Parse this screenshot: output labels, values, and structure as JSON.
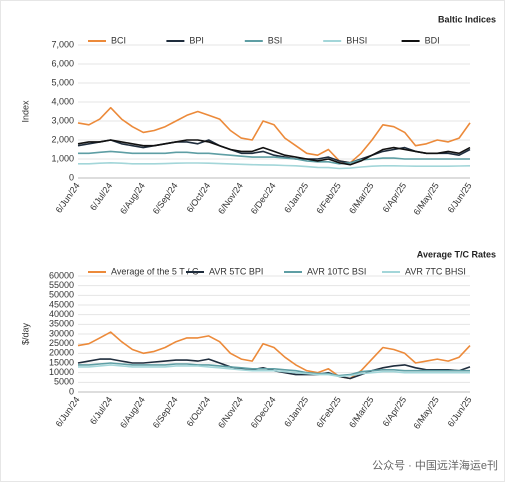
{
  "chart_data": [
    {
      "type": "line",
      "title": "Baltic Indices",
      "y_label": "Index",
      "categories": [
        "6/Jun/24",
        null,
        null,
        "6/Jul/24",
        null,
        null,
        "6/Aug/24",
        null,
        null,
        "6/Sep/24",
        null,
        null,
        "6/Oct/24",
        null,
        null,
        "6/Nov/24",
        null,
        null,
        "6/Dec/24",
        null,
        null,
        "6/Jan/25",
        null,
        null,
        "6/Feb/25",
        null,
        null,
        "6/Mar/25",
        null,
        null,
        "6/Apr/25",
        null,
        null,
        "6/May/25",
        null,
        null,
        "6/Jun/25"
      ],
      "ylim": [
        0,
        7000
      ],
      "yticks": [
        0,
        {
          "value": 1000,
          "label": "1,000"
        },
        {
          "value": 2000,
          "label": "2,000"
        },
        {
          "value": 3000,
          "label": "3,000"
        },
        {
          "value": 4000,
          "label": "4,000"
        },
        {
          "value": 5000,
          "label": "5,000"
        },
        {
          "value": 6000,
          "label": "6,000"
        },
        {
          "value": 7000,
          "label": "7,000"
        }
      ],
      "grid": true,
      "series": [
        {
          "name": "BCI",
          "color": "#ec8a3a",
          "values": [
            2900,
            2800,
            3100,
            3700,
            3100,
            2700,
            2400,
            2500,
            2700,
            3000,
            3300,
            3500,
            3300,
            3100,
            2500,
            2100,
            2000,
            3000,
            2800,
            2100,
            1700,
            1300,
            1200,
            1500,
            900,
            800,
            1300,
            2000,
            2800,
            2700,
            2400,
            1700,
            1800,
            2000,
            1900,
            2100,
            2900
          ]
        },
        {
          "name": "BPI",
          "color": "#1f2d3d",
          "values": [
            1700,
            1800,
            1900,
            2000,
            1800,
            1700,
            1600,
            1700,
            1800,
            1900,
            1900,
            1800,
            2000,
            1700,
            1500,
            1300,
            1300,
            1400,
            1200,
            1100,
            1000,
            1000,
            1000,
            1100,
            900,
            800,
            1000,
            1200,
            1400,
            1500,
            1600,
            1400,
            1300,
            1300,
            1300,
            1200,
            1500
          ]
        },
        {
          "name": "BSI",
          "color": "#5e9ea4",
          "values": [
            1300,
            1300,
            1350,
            1400,
            1350,
            1300,
            1300,
            1300,
            1300,
            1350,
            1350,
            1300,
            1300,
            1250,
            1200,
            1150,
            1100,
            1100,
            1100,
            1050,
            1000,
            900,
            850,
            850,
            750,
            800,
            950,
            1000,
            1050,
            1050,
            1000,
            1000,
            1000,
            1000,
            1000,
            1000,
            1000
          ]
        },
        {
          "name": "BHSI",
          "color": "#a3d6d9",
          "values": [
            750,
            750,
            780,
            800,
            780,
            750,
            750,
            750,
            760,
            780,
            790,
            790,
            780,
            760,
            740,
            720,
            700,
            690,
            680,
            660,
            640,
            600,
            560,
            550,
            500,
            520,
            580,
            620,
            640,
            640,
            630,
            620,
            620,
            620,
            620,
            630,
            640
          ]
        },
        {
          "name": "BDI",
          "color": "#111111",
          "values": [
            1800,
            1900,
            1900,
            2000,
            1900,
            1800,
            1700,
            1700,
            1800,
            1900,
            2000,
            2000,
            1900,
            1700,
            1500,
            1400,
            1400,
            1600,
            1400,
            1200,
            1100,
            1000,
            900,
            1000,
            800,
            700,
            900,
            1200,
            1500,
            1600,
            1500,
            1400,
            1300,
            1300,
            1400,
            1300,
            1600
          ]
        }
      ]
    },
    {
      "type": "line",
      "title": "Average T/C Rates",
      "y_label": "$/day",
      "categories": [
        "6/Jun/24",
        null,
        null,
        "6/Jul/24",
        null,
        null,
        "6/Aug/24",
        null,
        null,
        "6/Sep/24",
        null,
        null,
        "6/Oct/24",
        null,
        null,
        "6/Nov/24",
        null,
        null,
        "6/Dec/24",
        null,
        null,
        "6/Jan/25",
        null,
        null,
        "6/Feb/25",
        null,
        null,
        "6/Mar/25",
        null,
        null,
        "6/Apr/25",
        null,
        null,
        "6/May/25",
        null,
        null,
        "6/Jun/25"
      ],
      "ylim": [
        0,
        60000
      ],
      "yticks": [
        0,
        5000,
        10000,
        15000,
        20000,
        25000,
        30000,
        35000,
        40000,
        45000,
        50000,
        55000,
        60000
      ],
      "grid": true,
      "series": [
        {
          "name": "Average of the 5 T / C",
          "color": "#ec8a3a",
          "values": [
            24000,
            25000,
            28000,
            31000,
            26000,
            22000,
            20000,
            21000,
            23000,
            26000,
            28000,
            28000,
            29000,
            26000,
            20000,
            17000,
            16000,
            25000,
            23000,
            18000,
            14000,
            11000,
            10000,
            12000,
            8000,
            7000,
            11000,
            17000,
            23000,
            22000,
            20000,
            15000,
            16000,
            17000,
            16000,
            18000,
            24000
          ]
        },
        {
          "name": "AVR 5TC BPI",
          "color": "#1f2d3d",
          "values": [
            15000,
            16000,
            17000,
            17000,
            16000,
            15000,
            15000,
            15500,
            16000,
            16500,
            16500,
            16000,
            17000,
            15000,
            13000,
            12000,
            11500,
            12500,
            11000,
            10000,
            9000,
            9000,
            9000,
            10000,
            8000,
            7000,
            9000,
            11000,
            12500,
            13500,
            14000,
            12500,
            11500,
            11500,
            11500,
            11000,
            13000
          ]
        },
        {
          "name": "AVR 10TC BSI",
          "color": "#5e9ea4",
          "values": [
            14000,
            14000,
            14500,
            15000,
            14500,
            14000,
            14000,
            14000,
            14000,
            14500,
            14500,
            14000,
            14000,
            13500,
            13000,
            12500,
            12000,
            12000,
            12000,
            11500,
            11000,
            10000,
            9500,
            9500,
            8500,
            9000,
            10500,
            11000,
            11500,
            11500,
            11000,
            11000,
            11000,
            11000,
            11000,
            11000,
            11000
          ]
        },
        {
          "name": "AVR 7TC BHSI",
          "color": "#a3d6d9",
          "values": [
            13000,
            13000,
            13500,
            14000,
            13500,
            13000,
            13000,
            13000,
            13000,
            13500,
            13500,
            13500,
            13000,
            12500,
            12000,
            11500,
            11000,
            11000,
            11000,
            10500,
            10000,
            9500,
            9000,
            9000,
            8000,
            8500,
            9500,
            10000,
            10500,
            10500,
            10000,
            10000,
            10000,
            10000,
            10000,
            10000,
            10000
          ]
        }
      ]
    }
  ],
  "watermark": "公众号 · 中国远洋海运e刊"
}
